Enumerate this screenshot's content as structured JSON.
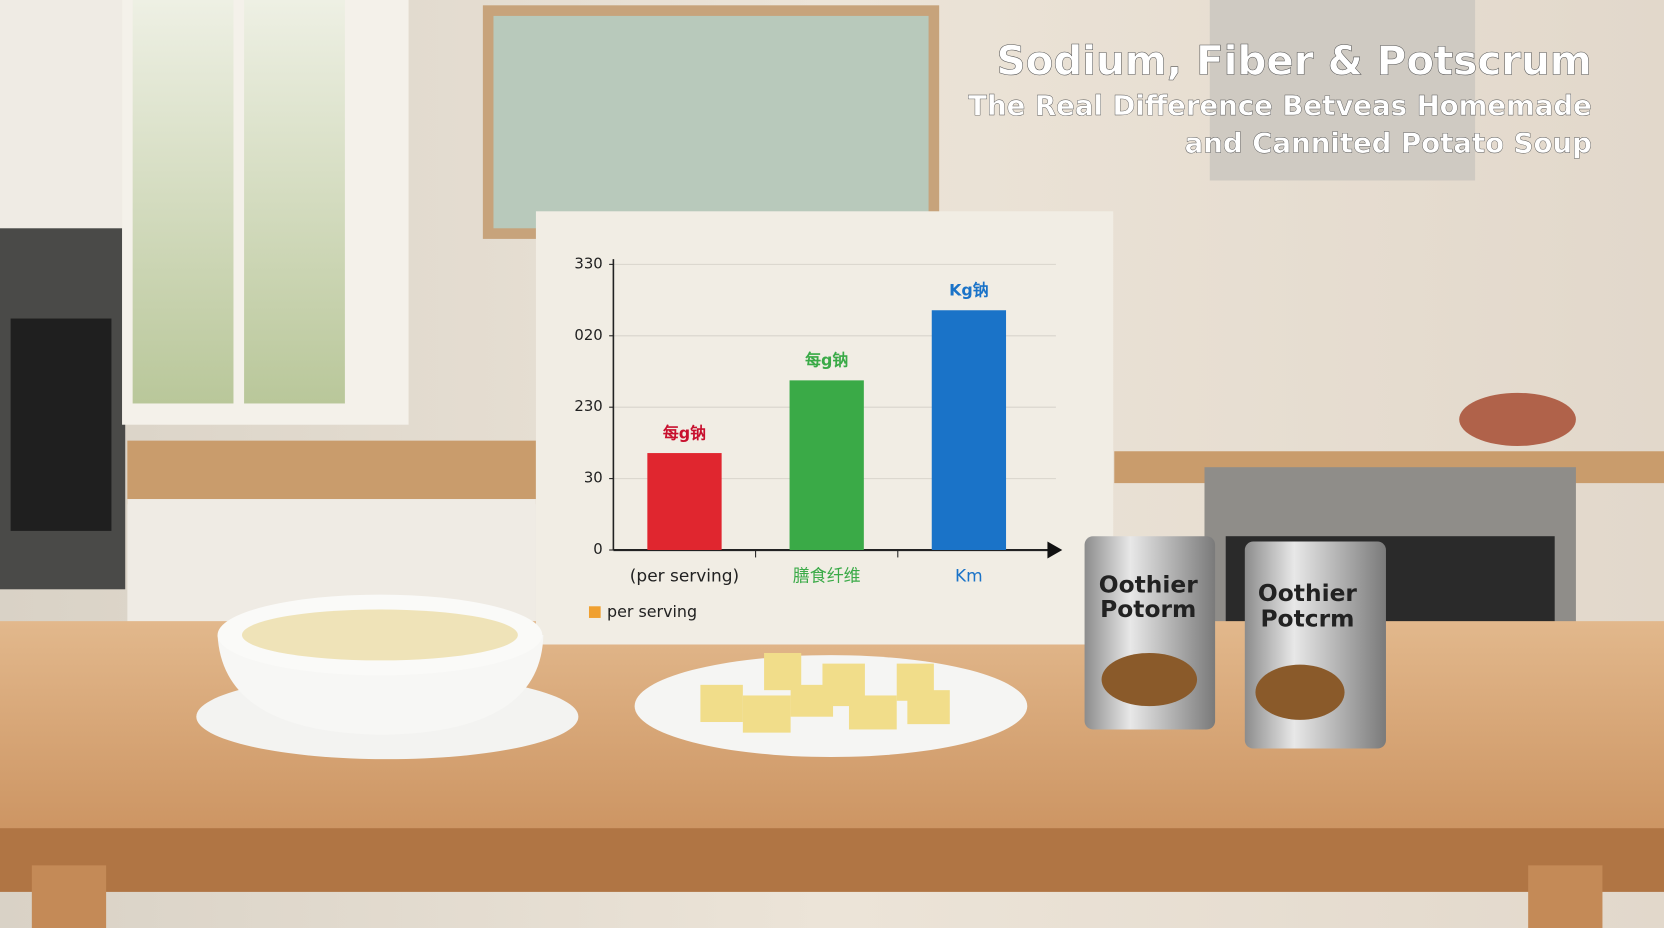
{
  "chart_data": {
    "type": "bar",
    "title": "Sodium, Fiber & Potscrum",
    "subtitle_lines": [
      "The Real Difference Betveas Homemade",
      "and Cannited Potato Soup"
    ],
    "categories": [
      "(per serving)",
      "膳食纤维",
      "Km"
    ],
    "series": [
      {
        "name": "per serving",
        "color": "#f0a030",
        "values": [
          112,
          196,
          277
        ],
        "bar_colors": [
          "#e0262f",
          "#3aaa47",
          "#1a73c8"
        ]
      }
    ],
    "bar_annotations": [
      "每g钠",
      "每g钠",
      "Kg钠"
    ],
    "ylim": [
      0,
      330
    ],
    "yticks": [
      0,
      {
        "value": 82.5,
        "label": "30"
      },
      {
        "value": 165,
        "label": "230"
      },
      {
        "value": 247.5,
        "label": "020"
      },
      330
    ],
    "grid": true
  },
  "scene": {
    "cans": [
      [
        "Oothier",
        "Potorm"
      ],
      [
        "Oothier",
        "Potcrm"
      ]
    ]
  }
}
